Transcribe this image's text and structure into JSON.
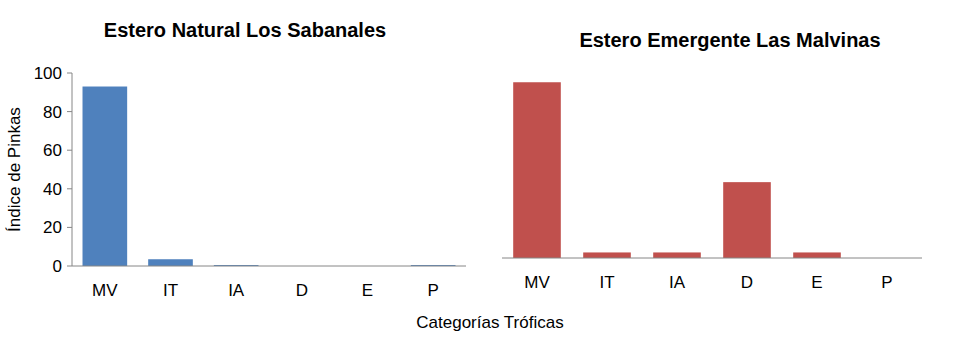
{
  "chart_data": [
    {
      "type": "bar",
      "title": "Estero Natural Los Sabanales",
      "categories": [
        "MV",
        "IT",
        "IA",
        "D",
        "E",
        "P"
      ],
      "values": [
        93,
        3.5,
        0.5,
        0,
        0,
        0.5
      ],
      "color": "#4f81bd",
      "ylim": [
        0,
        100
      ],
      "yticks": [
        0,
        20,
        40,
        60,
        80,
        100
      ],
      "y_label": "Índice de Pinkas",
      "x_label": "Categorías Tróficas"
    },
    {
      "type": "bar",
      "title": "Estero Emergente Las Malvinas",
      "categories": [
        "MV",
        "IT",
        "IA",
        "D",
        "E",
        "P"
      ],
      "values": [
        95,
        3,
        3,
        41,
        3,
        0
      ],
      "color": "#c0504d",
      "ylim": [
        0,
        100
      ],
      "tick_labels": "x"
    }
  ]
}
